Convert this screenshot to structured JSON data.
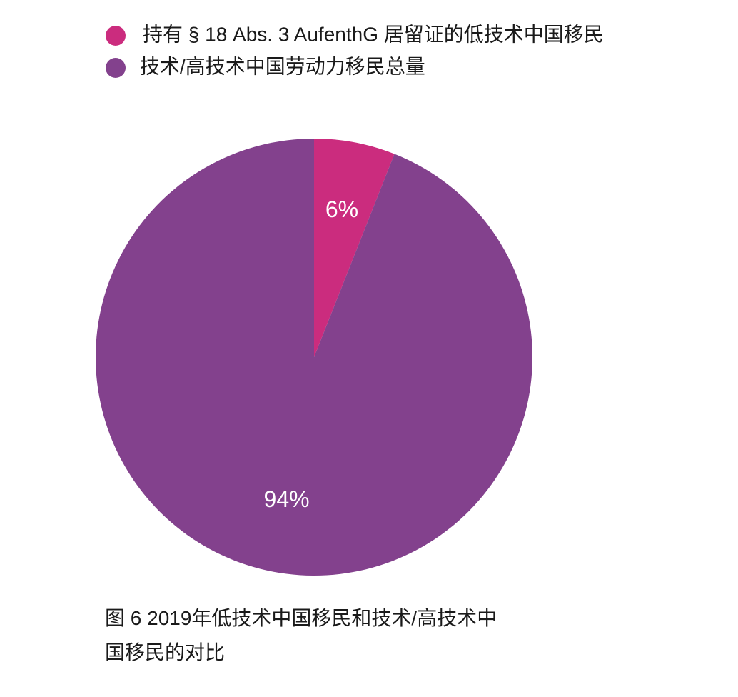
{
  "chart_data": {
    "type": "pie",
    "title": "",
    "categories": [
      "持有 § 18 Abs. 3 AufenthG 居留证的低技术中国移民",
      "技术/高技术中国劳动力移民总量"
    ],
    "values": [
      6,
      94
    ],
    "value_labels": [
      "6%",
      "94%"
    ],
    "colors": [
      "#CB2C7E",
      "#83418D"
    ],
    "legend_position": "top"
  },
  "caption": {
    "line1": "图 6 2019年低技术中国移民和技术/高技术中",
    "line2": "国移民的对比"
  }
}
